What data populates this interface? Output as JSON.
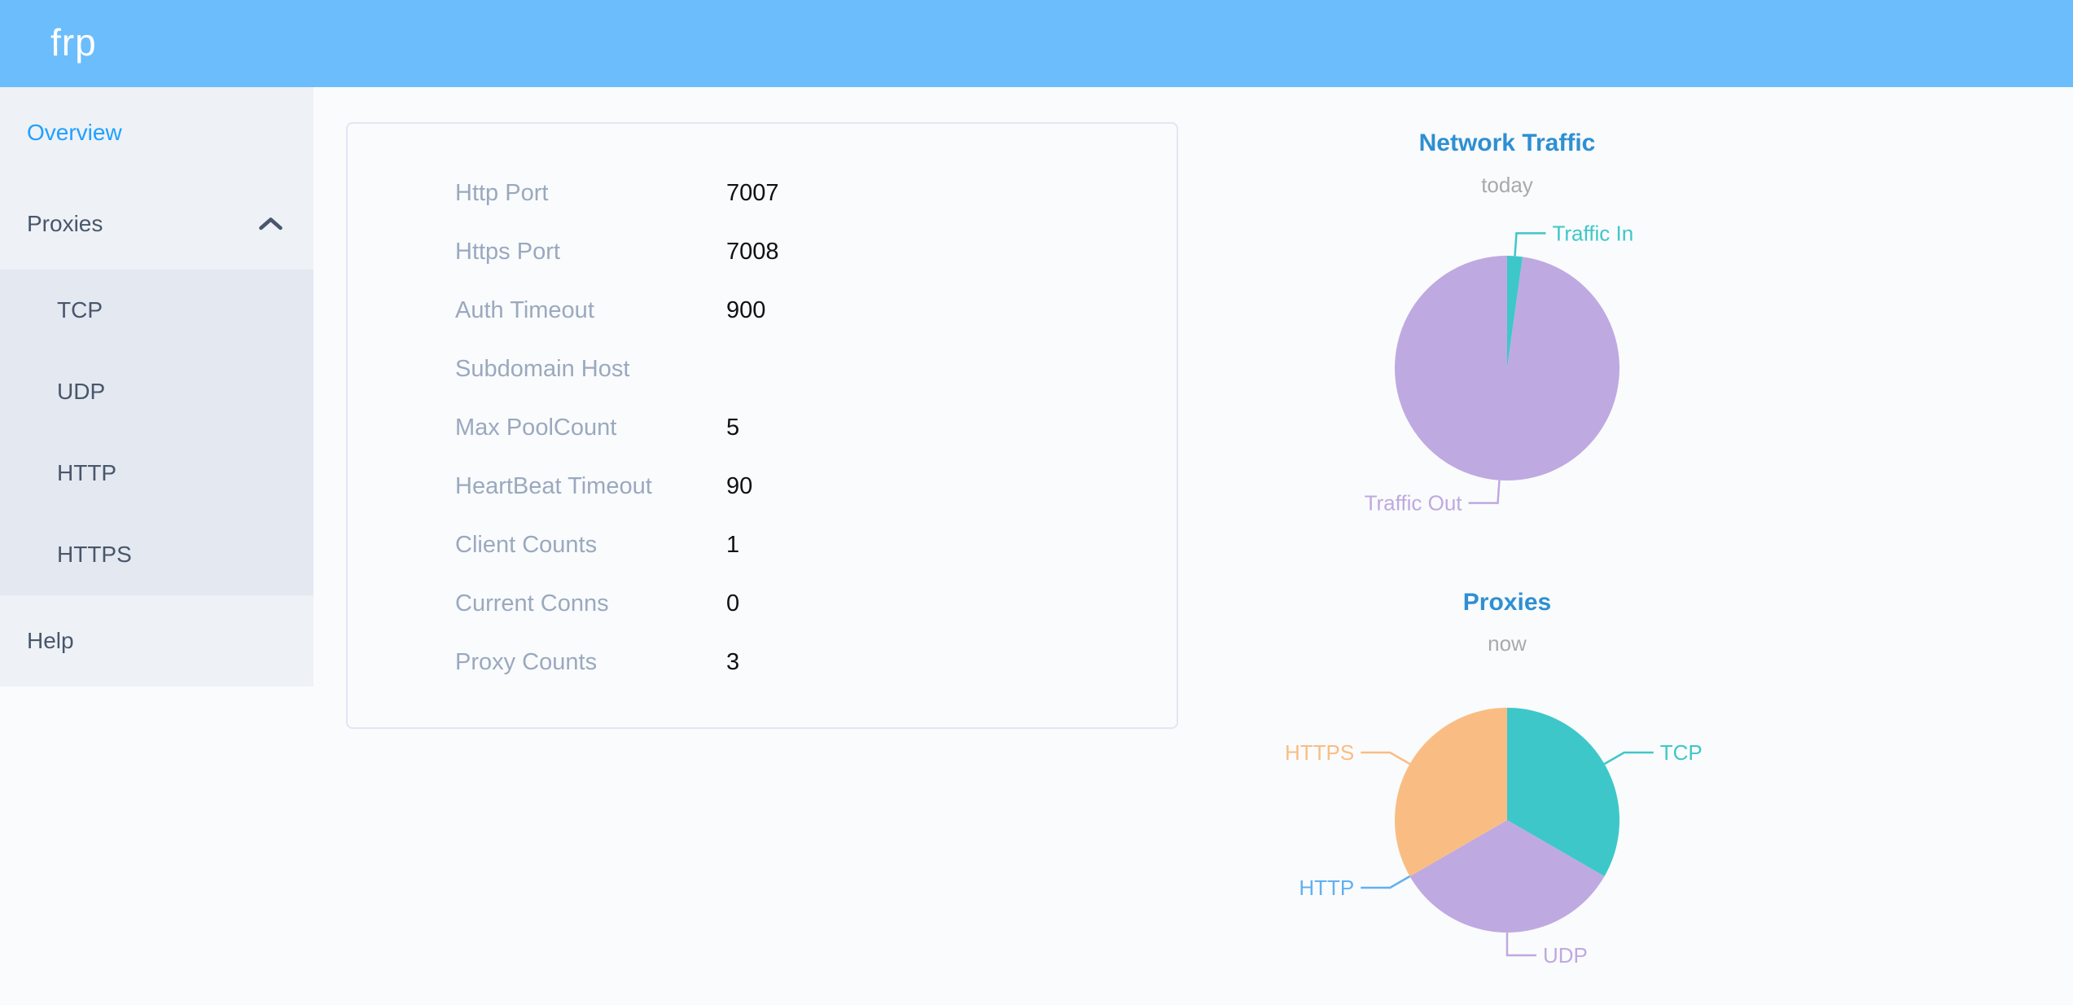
{
  "app": {
    "logo_text": "frp",
    "header_color": "#6cbdfb",
    "active_menu_color": "#20a0ff",
    "chart_title_color": "#2e8fd3"
  },
  "sidebar": {
    "active_item": "Overview",
    "overview": {
      "label": "Overview"
    },
    "proxies": {
      "label": "Proxies",
      "expanded": true,
      "chevron_icon": "chevron-up",
      "children": [
        {
          "label": "TCP"
        },
        {
          "label": "UDP"
        },
        {
          "label": "HTTP"
        },
        {
          "label": "HTTPS"
        }
      ]
    },
    "help": {
      "label": "Help"
    }
  },
  "server_info": {
    "rows": [
      {
        "label": "Http Port",
        "value": "7007"
      },
      {
        "label": "Https Port",
        "value": "7008"
      },
      {
        "label": "Auth Timeout",
        "value": "900"
      },
      {
        "label": "Subdomain Host",
        "value": ""
      },
      {
        "label": "Max PoolCount",
        "value": "5"
      },
      {
        "label": "HeartBeat Timeout",
        "value": "90"
      },
      {
        "label": "Client Counts",
        "value": "1"
      },
      {
        "label": "Current Conns",
        "value": "0"
      },
      {
        "label": "Proxy Counts",
        "value": "3"
      }
    ]
  },
  "chart_data": [
    {
      "type": "pie",
      "title": "Network Traffic",
      "subtitle": "today",
      "labels": "callout",
      "legend_position": "none",
      "value_basis": "percent estimated from arc angles",
      "slices": [
        {
          "label": "Traffic In",
          "value": 2.2,
          "color": "#3ec7c9"
        },
        {
          "label": "Traffic Out",
          "value": 97.8,
          "color": "#bfa9e1"
        }
      ]
    },
    {
      "type": "pie",
      "title": "Proxies",
      "subtitle": "now",
      "labels": "callout",
      "legend_position": "none",
      "value_basis": "proxy counts by type (total 3; HTTP slice is zero-width)",
      "slices": [
        {
          "label": "TCP",
          "value": 1,
          "color": "#3ec7c9"
        },
        {
          "label": "UDP",
          "value": 1,
          "color": "#bfa9e1"
        },
        {
          "label": "HTTP",
          "value": 0,
          "color": "#61b0f0"
        },
        {
          "label": "HTTPS",
          "value": 1,
          "color": "#f9bd84"
        }
      ]
    }
  ]
}
